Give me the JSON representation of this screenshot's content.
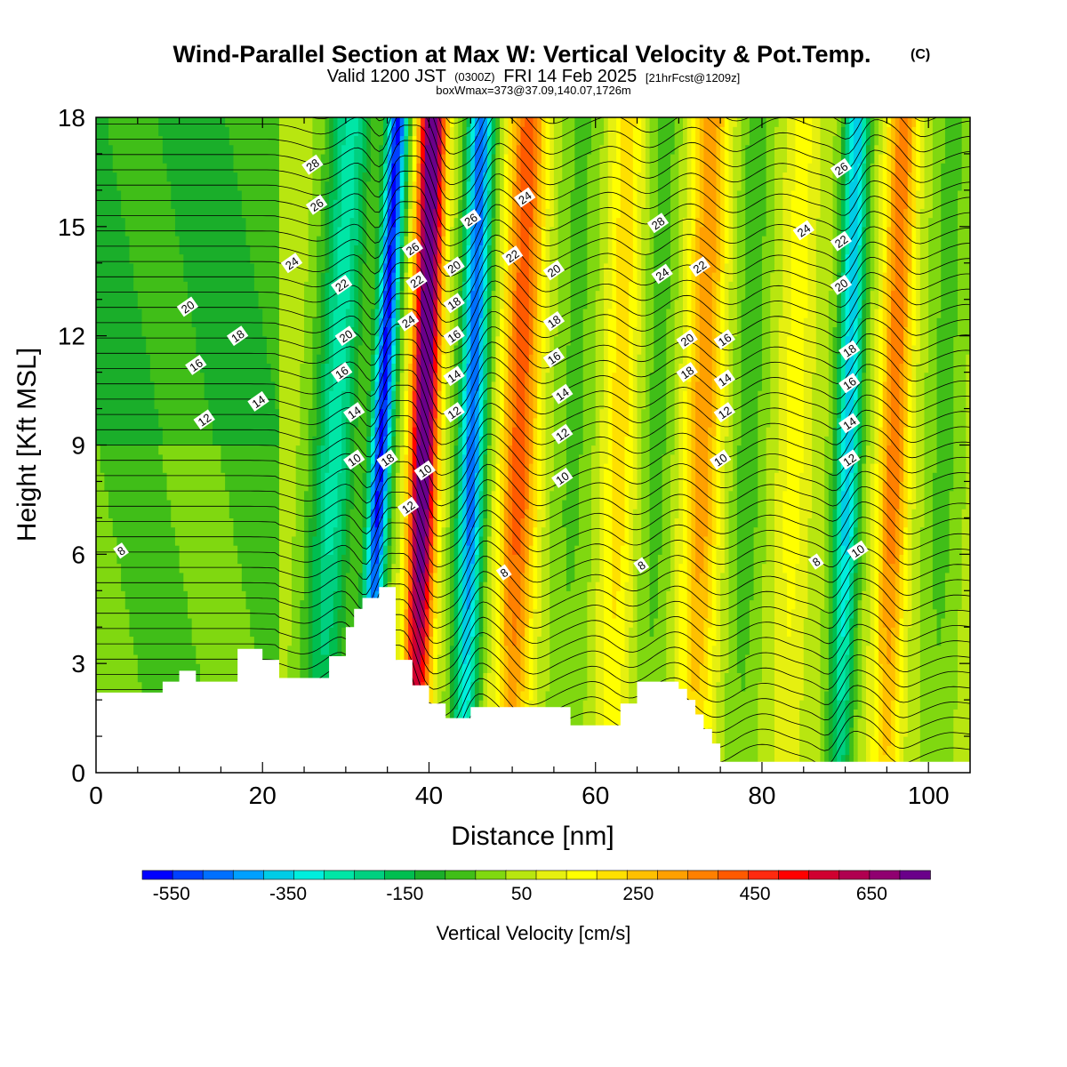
{
  "header": {
    "title": "Wind-Parallel Section at Max W: Vertical Velocity & Pot.Temp.",
    "copyright": "(C)",
    "valid_prefix": "Valid 1200 JST",
    "valid_utc": "(0300Z)",
    "valid_date": "FRI 14 Feb 2025",
    "forecast": "[21hrFcst@1209z]",
    "box_info": "boxWmax=373@37.09,140.07,1726m"
  },
  "chart_data": {
    "type": "heatmap",
    "xlabel": "Distance [nm]",
    "ylabel": "Height [Kft MSL]",
    "xlim": [
      0,
      105
    ],
    "ylim": [
      0,
      18
    ],
    "x_ticks": [
      0,
      20,
      40,
      60,
      80,
      100
    ],
    "y_ticks": [
      0,
      3,
      6,
      9,
      12,
      15,
      18
    ],
    "colorbar": {
      "label": "Vertical Velocity [cm/s]",
      "tick_labels": [
        "-550",
        "-350",
        "-150",
        "50",
        "250",
        "450",
        "650"
      ],
      "tick_values": [
        -550,
        -350,
        -150,
        50,
        250,
        450,
        650
      ],
      "range": [
        -600,
        750
      ],
      "colors": [
        "#0000ff",
        "#0040ff",
        "#0070ff",
        "#00a0ff",
        "#00cce6",
        "#00eedd",
        "#00e6a6",
        "#00d080",
        "#00be50",
        "#1aae2a",
        "#40be18",
        "#80d810",
        "#b8e610",
        "#e6f010",
        "#ffff00",
        "#ffe000",
        "#ffc000",
        "#ffa000",
        "#ff8000",
        "#ff5a00",
        "#ff2a10",
        "#ff0000",
        "#d00030",
        "#b00050",
        "#900070",
        "#6a008a"
      ]
    },
    "contour_field": "Potential Temperature (C)",
    "contour_labels": [
      {
        "text": "28",
        "x": 26.0,
        "y": 16.7
      },
      {
        "text": "26",
        "x": 26.5,
        "y": 15.6
      },
      {
        "text": "24",
        "x": 23.5,
        "y": 14.0
      },
      {
        "text": "22",
        "x": 29.5,
        "y": 13.4
      },
      {
        "text": "20",
        "x": 11.0,
        "y": 12.8
      },
      {
        "text": "20",
        "x": 30.0,
        "y": 12.0
      },
      {
        "text": "18",
        "x": 17.0,
        "y": 12.0
      },
      {
        "text": "16",
        "x": 12.0,
        "y": 11.2
      },
      {
        "text": "16",
        "x": 29.5,
        "y": 11.0
      },
      {
        "text": "14",
        "x": 19.5,
        "y": 10.2
      },
      {
        "text": "14",
        "x": 31.0,
        "y": 9.9
      },
      {
        "text": "12",
        "x": 13.0,
        "y": 9.7
      },
      {
        "text": "10",
        "x": 31.0,
        "y": 8.6
      },
      {
        "text": "18",
        "x": 35.0,
        "y": 8.6
      },
      {
        "text": "8",
        "x": 3.0,
        "y": 6.1
      },
      {
        "text": "26",
        "x": 38.0,
        "y": 14.4
      },
      {
        "text": "22",
        "x": 38.5,
        "y": 13.5
      },
      {
        "text": "24",
        "x": 37.5,
        "y": 12.4
      },
      {
        "text": "10",
        "x": 39.5,
        "y": 8.3
      },
      {
        "text": "12",
        "x": 37.5,
        "y": 7.3
      },
      {
        "text": "26",
        "x": 45.0,
        "y": 15.2
      },
      {
        "text": "20",
        "x": 43.0,
        "y": 13.9
      },
      {
        "text": "18",
        "x": 43.0,
        "y": 12.9
      },
      {
        "text": "16",
        "x": 43.0,
        "y": 12.0
      },
      {
        "text": "14",
        "x": 43.0,
        "y": 10.9
      },
      {
        "text": "12",
        "x": 43.0,
        "y": 9.9
      },
      {
        "text": "24",
        "x": 51.5,
        "y": 15.8
      },
      {
        "text": "22",
        "x": 50.0,
        "y": 14.2
      },
      {
        "text": "20",
        "x": 55.0,
        "y": 13.8
      },
      {
        "text": "18",
        "x": 55.0,
        "y": 12.4
      },
      {
        "text": "16",
        "x": 55.0,
        "y": 11.4
      },
      {
        "text": "14",
        "x": 56.0,
        "y": 10.4
      },
      {
        "text": "12",
        "x": 56.0,
        "y": 9.3
      },
      {
        "text": "10",
        "x": 56.0,
        "y": 8.1
      },
      {
        "text": "8",
        "x": 49.0,
        "y": 5.5
      },
      {
        "text": "8",
        "x": 65.5,
        "y": 5.7
      },
      {
        "text": "28",
        "x": 67.5,
        "y": 15.1
      },
      {
        "text": "24",
        "x": 68.0,
        "y": 13.7
      },
      {
        "text": "22",
        "x": 72.5,
        "y": 13.9
      },
      {
        "text": "20",
        "x": 71.0,
        "y": 11.9
      },
      {
        "text": "18",
        "x": 71.0,
        "y": 11.0
      },
      {
        "text": "16",
        "x": 75.5,
        "y": 11.9
      },
      {
        "text": "14",
        "x": 75.5,
        "y": 10.8
      },
      {
        "text": "12",
        "x": 75.5,
        "y": 9.9
      },
      {
        "text": "10",
        "x": 75.0,
        "y": 8.6
      },
      {
        "text": "24",
        "x": 85.0,
        "y": 14.9
      },
      {
        "text": "26",
        "x": 89.5,
        "y": 16.6
      },
      {
        "text": "22",
        "x": 89.5,
        "y": 14.6
      },
      {
        "text": "20",
        "x": 89.5,
        "y": 13.4
      },
      {
        "text": "18",
        "x": 90.5,
        "y": 11.6
      },
      {
        "text": "16",
        "x": 90.5,
        "y": 10.7
      },
      {
        "text": "14",
        "x": 90.5,
        "y": 9.6
      },
      {
        "text": "12",
        "x": 90.5,
        "y": 8.6
      },
      {
        "text": "10",
        "x": 91.5,
        "y": 6.1
      },
      {
        "text": "8",
        "x": 86.5,
        "y": 5.8
      }
    ],
    "terrain_profile": {
      "x": [
        0,
        7.5,
        8,
        10,
        12,
        15,
        17,
        20,
        22,
        26,
        28,
        30,
        31,
        32,
        34,
        35,
        36,
        38,
        40,
        42,
        45,
        55,
        57,
        60,
        63,
        65,
        68,
        70,
        71,
        72,
        73,
        74,
        75,
        100,
        105
      ],
      "y": [
        2.2,
        2.2,
        2.5,
        2.8,
        2.5,
        2.5,
        3.4,
        3.1,
        2.6,
        2.6,
        3.2,
        4.0,
        4.5,
        4.8,
        5.1,
        5.1,
        3.1,
        2.4,
        1.9,
        1.5,
        1.8,
        1.8,
        1.3,
        1.3,
        1.9,
        2.5,
        2.5,
        2.3,
        2.0,
        1.6,
        1.2,
        0.8,
        0.3,
        0.3,
        0.3
      ]
    }
  }
}
